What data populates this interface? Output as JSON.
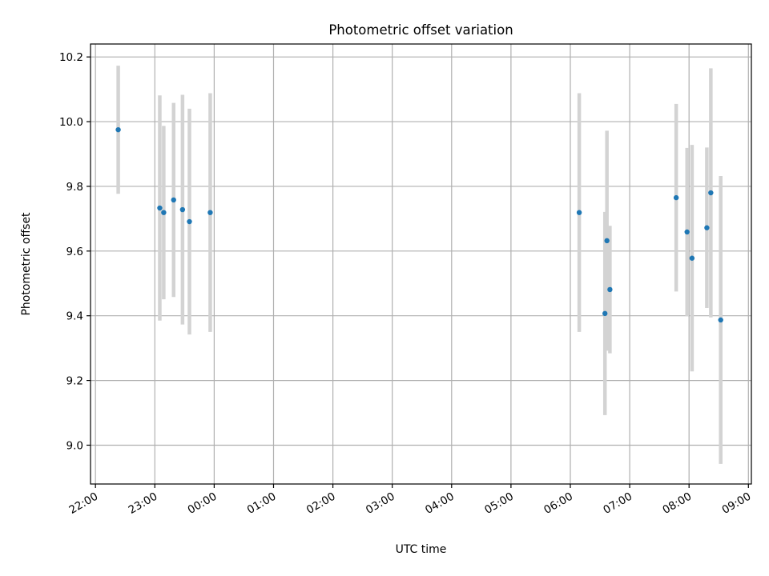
{
  "chart_data": {
    "type": "scatter",
    "title": "Photometric offset variation",
    "xlabel": "UTC time",
    "ylabel": "Photometric offset",
    "xlim": [
      "21:55",
      "09:03"
    ],
    "ylim": [
      8.88,
      10.24
    ],
    "grid": true,
    "x_ticks": [
      "22:00",
      "23:00",
      "00:00",
      "01:00",
      "02:00",
      "03:00",
      "04:00",
      "05:00",
      "06:00",
      "07:00",
      "08:00",
      "09:00"
    ],
    "y_ticks": [
      "9.0",
      "9.2",
      "9.4",
      "9.6",
      "9.8",
      "10.0",
      "10.2"
    ],
    "series": [
      {
        "marker_color": "#1f77b4",
        "errorbar_color": "#d3d3d3",
        "points": [
          {
            "time": "22:23",
            "y": 9.975,
            "err": 0.198
          },
          {
            "time": "23:05",
            "y": 9.733,
            "err": 0.348
          },
          {
            "time": "23:09",
            "y": 9.719,
            "err": 0.268
          },
          {
            "time": "23:19",
            "y": 9.758,
            "err": 0.3
          },
          {
            "time": "23:28",
            "y": 9.728,
            "err": 0.355
          },
          {
            "time": "23:35",
            "y": 9.691,
            "err": 0.349
          },
          {
            "time": "23:56",
            "y": 9.719,
            "err": 0.369
          },
          {
            "time": "06:09",
            "y": 9.719,
            "err": 0.369
          },
          {
            "time": "06:35",
            "y": 9.407,
            "err": 0.314
          },
          {
            "time": "06:37",
            "y": 9.632,
            "err": 0.34
          },
          {
            "time": "06:40",
            "y": 9.481,
            "err": 0.197
          },
          {
            "time": "07:47",
            "y": 9.765,
            "err": 0.29
          },
          {
            "time": "07:58",
            "y": 9.659,
            "err": 0.26
          },
          {
            "time": "08:03",
            "y": 9.578,
            "err": 0.35
          },
          {
            "time": "08:18",
            "y": 9.672,
            "err": 0.248
          },
          {
            "time": "08:22",
            "y": 9.78,
            "err": 0.385
          },
          {
            "time": "08:32",
            "y": 9.387,
            "err": 0.445
          }
        ]
      }
    ]
  }
}
